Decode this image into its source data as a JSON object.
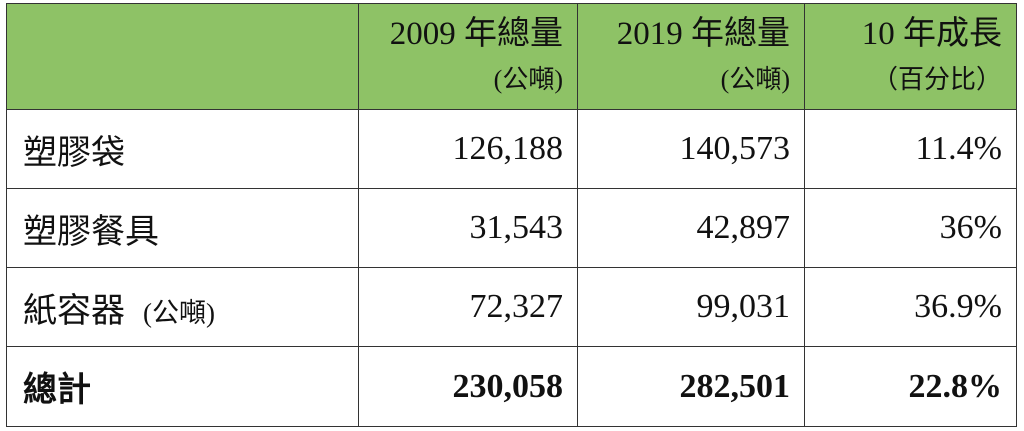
{
  "table": {
    "headers": [
      {
        "main": "",
        "sub": ""
      },
      {
        "main": "2009 年總量",
        "sub": "(公噸)"
      },
      {
        "main": "2019 年總量",
        "sub": "(公噸)"
      },
      {
        "main": "10 年成長",
        "sub": "（百分比）"
      }
    ],
    "rows": [
      {
        "label": "塑膠袋",
        "unit": "",
        "v2009": "126,188",
        "v2019": "140,573",
        "growth": "11.4%"
      },
      {
        "label": "塑膠餐具",
        "unit": "",
        "v2009": "31,543",
        "v2019": "42,897",
        "growth": "36%"
      },
      {
        "label": "紙容器",
        "unit": "(公噸)",
        "v2009": "72,327",
        "v2019": "99,031",
        "growth": "36.9%"
      }
    ],
    "total": {
      "label": "總計",
      "v2009": "230,058",
      "v2019": "282,501",
      "growth": "22.8%"
    }
  },
  "colors": {
    "header_bg": "#8ec266",
    "border": "#333333",
    "text": "#111111"
  }
}
